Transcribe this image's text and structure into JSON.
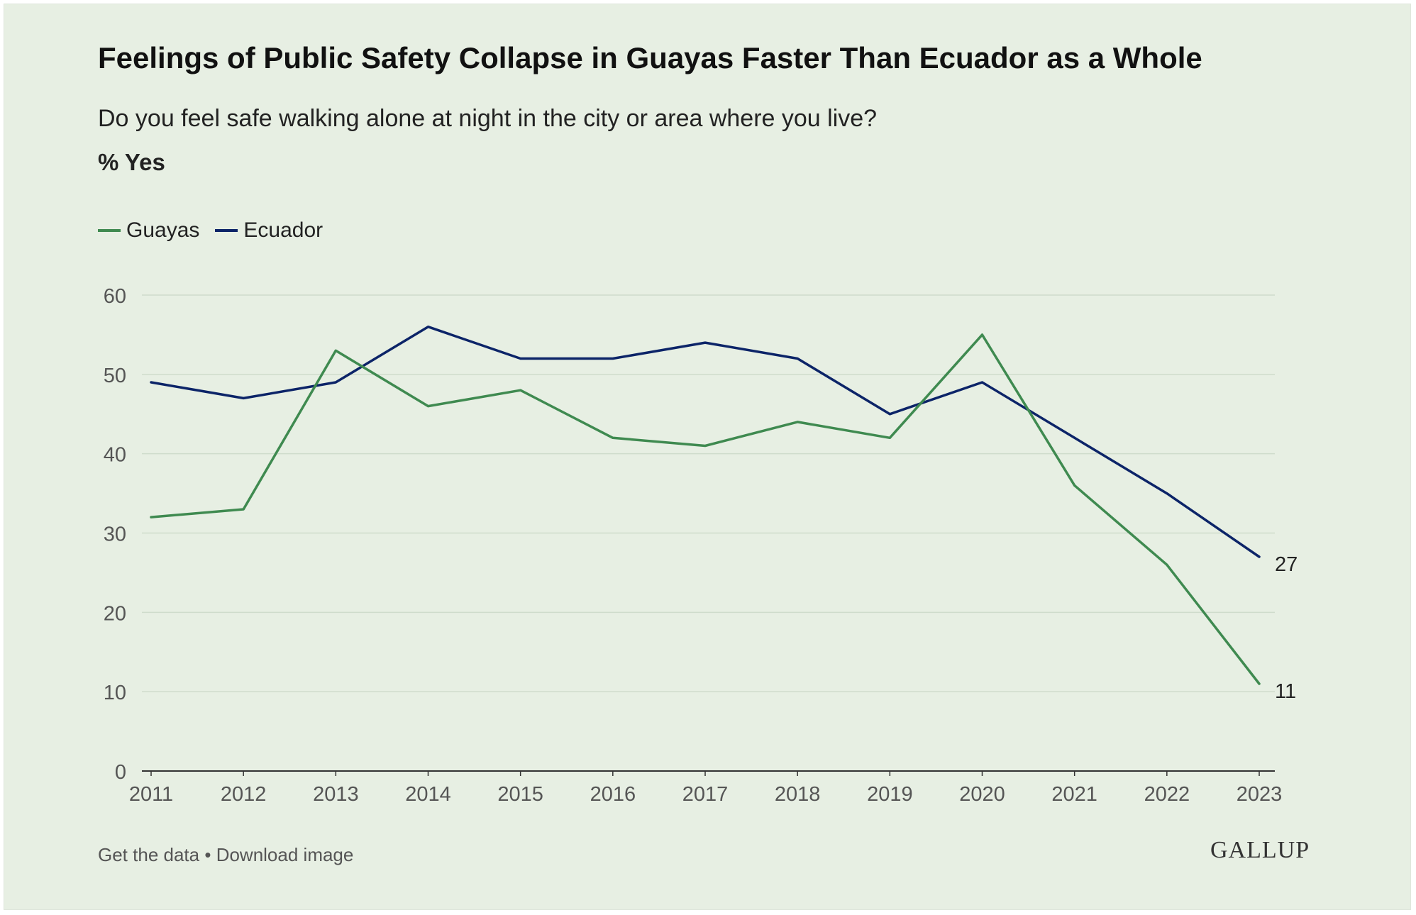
{
  "header": {
    "title": "Feelings of Public Safety Collapse in Guayas Faster Than Ecuador as a Whole",
    "question": "Do you feel safe walking alone at night in the city or area where you live?",
    "unit_label": "% Yes"
  },
  "legend": {
    "items": [
      {
        "label": "Guayas",
        "color": "#3f8a50"
      },
      {
        "label": "Ecuador",
        "color": "#0c2468"
      }
    ]
  },
  "footer": {
    "get_data": "Get the data",
    "separator": "•",
    "download": "Download image",
    "brand": "GALLUP"
  },
  "chart_data": {
    "type": "line",
    "title": "Feelings of Public Safety Collapse in Guayas Faster Than Ecuador as a Whole",
    "subtitle": "Do you feel safe walking alone at night in the city or area where you live?",
    "ylabel": "% Yes",
    "xlabel": "",
    "ylim": [
      0,
      60
    ],
    "yticks": [
      0,
      10,
      20,
      30,
      40,
      50,
      60
    ],
    "grid": true,
    "legend_position": "top-left",
    "x": [
      "2011",
      "2012",
      "2013",
      "2014",
      "2015",
      "2016",
      "2017",
      "2018",
      "2019",
      "2020",
      "2021",
      "2022",
      "2023"
    ],
    "series": [
      {
        "name": "Guayas",
        "color": "#3f8a50",
        "values": [
          32,
          33,
          53,
          46,
          48,
          42,
          41,
          44,
          42,
          55,
          36,
          26,
          11
        ],
        "end_label": "11"
      },
      {
        "name": "Ecuador",
        "color": "#0c2468",
        "values": [
          49,
          47,
          49,
          56,
          52,
          52,
          54,
          52,
          45,
          49,
          42,
          35,
          27
        ],
        "end_label": "27"
      }
    ]
  }
}
